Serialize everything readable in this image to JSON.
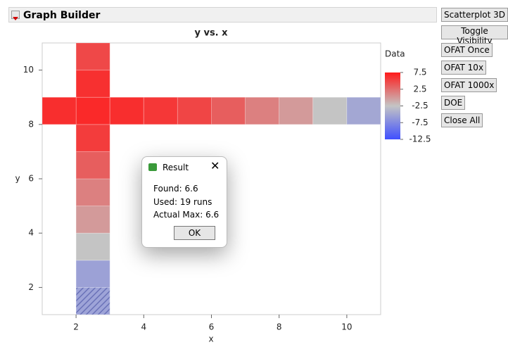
{
  "header": {
    "title": "Graph Builder"
  },
  "buttons": [
    "Scatterplot 3D",
    "Toggle Visibility",
    "OFAT Once",
    "OFAT 10x",
    "OFAT 1000x",
    "DOE",
    "Close All"
  ],
  "chart_data": {
    "type": "heatmap",
    "title": "y vs. x",
    "x_label": "x",
    "y_label": "y",
    "xlim": [
      1,
      11
    ],
    "ylim": [
      1,
      11
    ],
    "xticks": [
      2,
      4,
      6,
      8,
      10
    ],
    "yticks": [
      2,
      4,
      6,
      8,
      10
    ],
    "x": [
      2,
      2,
      2,
      2,
      2,
      2,
      2,
      2,
      2,
      2,
      1,
      3,
      4,
      5,
      6,
      7,
      8,
      9,
      10
    ],
    "y": [
      1,
      2,
      3,
      4,
      5,
      6,
      7,
      8,
      9,
      10,
      8,
      8,
      8,
      8,
      8,
      8,
      8,
      8,
      8
    ],
    "values": [
      -6.5,
      -5.5,
      -2.5,
      0,
      1.5,
      3.5,
      5.5,
      6.6,
      6.2,
      4.8,
      6.3,
      6.3,
      5.8,
      5,
      3.5,
      1.5,
      0,
      -2.5,
      -5
    ],
    "hatched": [
      true,
      false,
      false,
      false,
      false,
      false,
      false,
      false,
      false,
      false,
      false,
      false,
      false,
      false,
      false,
      false,
      false,
      false,
      false
    ],
    "color_scale": {
      "title": "Data",
      "lim": [
        -12.5,
        7.5
      ],
      "ticks": [
        7.5,
        2.5,
        -2.5,
        -7.5,
        -12.5
      ],
      "colors": [
        "#3f4fff",
        "#c4c4c4",
        "#ff1a1a"
      ]
    }
  },
  "dialog": {
    "title": "Result",
    "lines": [
      "Found: 6.6",
      "Used: 19 runs",
      "Actual Max: 6.6"
    ],
    "button": "OK"
  }
}
